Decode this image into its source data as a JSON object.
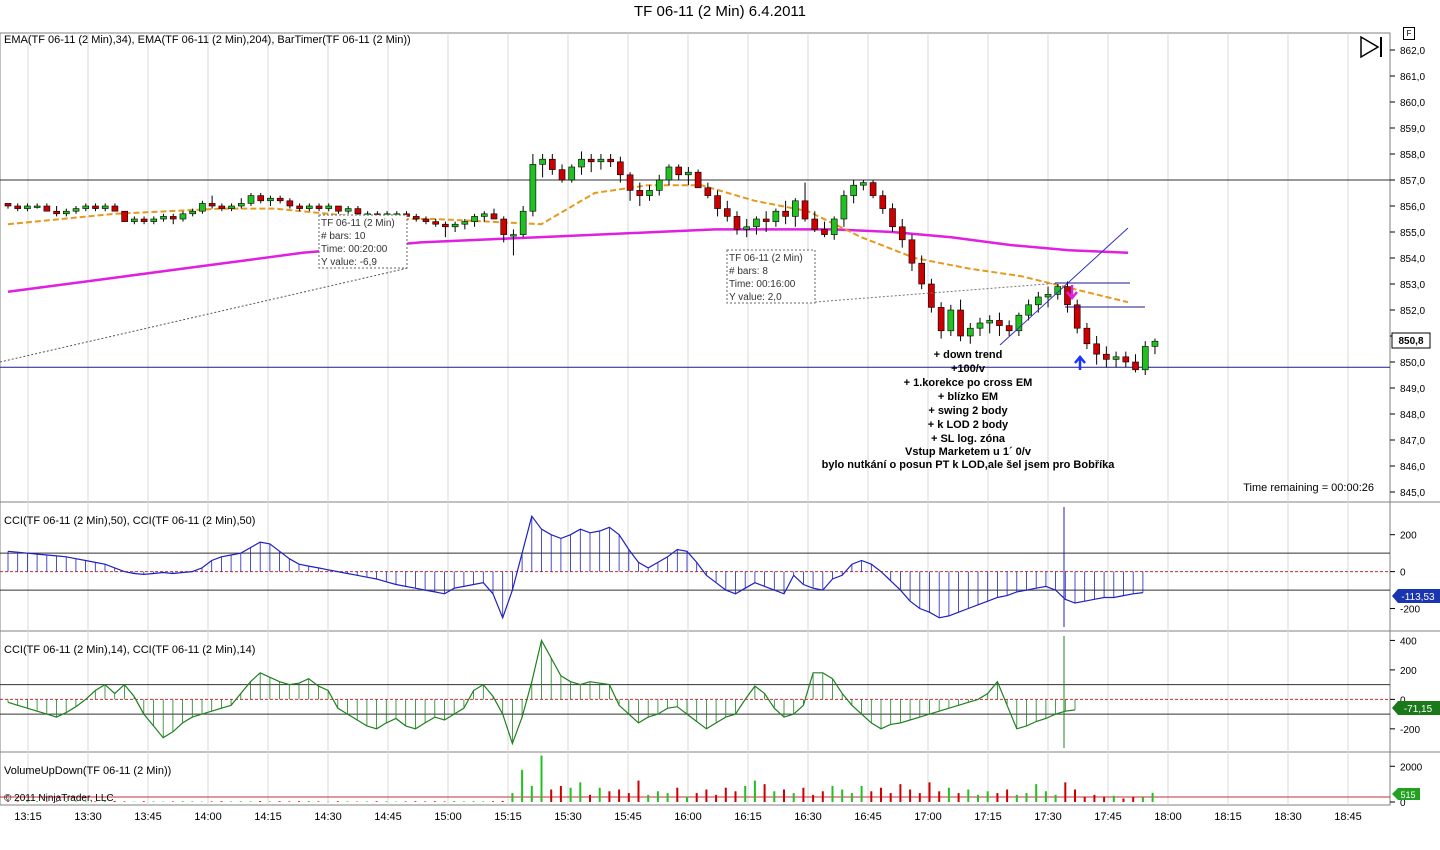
{
  "window": {
    "title": "TF 06-11 (2 Min)  6.4.2011",
    "badge": "F"
  },
  "panels": {
    "price": {
      "indicator_label": "EMA(TF 06-11 (2 Min),34), EMA(TF 06-11 (2 Min),204), BarTimer(TF 06-11 (2 Min))",
      "time_remaining": "Time remaining = 00:00:26",
      "last_price_label": "850,8",
      "y_ticks": [
        "862,0",
        "861,0",
        "860,0",
        "859,0",
        "858,0",
        "857,0",
        "856,0",
        "855,0",
        "854,0",
        "853,0",
        "852,0",
        "851,0",
        "850,0",
        "849,0",
        "848,0",
        "847,0",
        "846,0",
        "845,0"
      ],
      "tooltip1": {
        "lines": [
          "TF 06-11 (2 Min)",
          "# bars:   10",
          "Time:    00:20:00",
          "Y value: -6,9"
        ]
      },
      "tooltip2": {
        "lines": [
          "TF 06-11 (2 Min)",
          "# bars:   8",
          "Time:    00:16:00",
          "Y value: 2,0"
        ]
      },
      "notes": [
        "+ down trend",
        "+100/v",
        "+ 1.korekce po cross EM",
        "+ blízko EM",
        "+ swing 2 body",
        "+ k LOD 2 body",
        "+ SL log. zóna",
        "Vstup Marketem u 1´ 0/v",
        "bylo nutkání o posun PT k LOD,ale šel jsem pro Bobříka"
      ]
    },
    "cci50": {
      "label": "CCI(TF 06-11 (2 Min),50), CCI(TF 06-11 (2 Min),50)",
      "y_ticks": [
        "200",
        "0",
        "-200"
      ],
      "last_label": "-113,53"
    },
    "cci14": {
      "label": "CCI(TF 06-11 (2 Min),14), CCI(TF 06-11 (2 Min),14)",
      "y_ticks": [
        "400",
        "200",
        "0",
        "-200"
      ],
      "last_label": "-71,15"
    },
    "volume": {
      "label": "VolumeUpDown(TF 06-11 (2 Min))",
      "copyright": "© 2011 NinjaTrader, LLC",
      "y_ticks": [
        "2000",
        "0"
      ],
      "last_label": "515"
    }
  },
  "x_axis": {
    "ticks": [
      "13:15",
      "13:30",
      "13:45",
      "14:00",
      "14:15",
      "14:30",
      "14:45",
      "15:00",
      "15:15",
      "15:30",
      "15:45",
      "16:00",
      "16:15",
      "16:30",
      "16:45",
      "17:00",
      "17:15",
      "17:30",
      "17:45",
      "18:00",
      "18:15",
      "18:30",
      "18:45"
    ]
  },
  "colors": {
    "up": "#22c022",
    "down": "#cc0000",
    "ema34": "#e69a1c",
    "ema204": "#e020e0",
    "cci50": "#2020c0",
    "cci14": "#208020",
    "axis_label_bg": "#00008b"
  },
  "chart_data": [
    {
      "type": "candlestick",
      "title": "TF 06-11 (2 Min)  6.4.2011",
      "xlabel": "",
      "ylabel": "",
      "x_start": "13:15",
      "interval_minutes": 2,
      "ylim": [
        845,
        862.5
      ],
      "candles": [
        [
          856.1,
          856.1,
          855.9,
          856.0
        ],
        [
          856.0,
          856.1,
          855.8,
          855.9
        ],
        [
          855.9,
          856.1,
          855.8,
          856.0
        ],
        [
          856.0,
          856.1,
          855.9,
          856.0
        ],
        [
          856.0,
          856.1,
          855.8,
          855.8
        ],
        [
          855.8,
          856.0,
          855.6,
          855.7
        ],
        [
          855.7,
          855.9,
          855.6,
          855.8
        ],
        [
          855.8,
          856.0,
          855.7,
          855.9
        ],
        [
          855.9,
          856.1,
          855.8,
          856.0
        ],
        [
          856.0,
          856.1,
          855.8,
          855.9
        ],
        [
          855.9,
          856.1,
          855.8,
          856.0
        ],
        [
          856.0,
          856.1,
          855.8,
          855.8
        ],
        [
          855.8,
          855.8,
          855.4,
          855.4
        ],
        [
          855.4,
          855.6,
          855.3,
          855.5
        ],
        [
          855.5,
          855.6,
          855.3,
          855.4
        ],
        [
          855.4,
          855.6,
          855.3,
          855.5
        ],
        [
          855.5,
          855.7,
          855.4,
          855.6
        ],
        [
          855.6,
          855.7,
          855.3,
          855.5
        ],
        [
          855.5,
          855.8,
          855.4,
          855.7
        ],
        [
          855.7,
          855.9,
          855.6,
          855.8
        ],
        [
          855.8,
          856.2,
          855.7,
          856.1
        ],
        [
          856.1,
          856.4,
          855.9,
          856.0
        ],
        [
          856.0,
          856.1,
          855.8,
          855.9
        ],
        [
          855.9,
          856.1,
          855.8,
          856.0
        ],
        [
          856.0,
          856.3,
          855.9,
          856.1
        ],
        [
          856.1,
          856.5,
          856.0,
          856.4
        ],
        [
          856.4,
          856.5,
          856.1,
          856.2
        ],
        [
          856.2,
          856.4,
          856.0,
          856.3
        ],
        [
          856.3,
          856.4,
          856.1,
          856.2
        ],
        [
          856.2,
          856.3,
          855.9,
          856.0
        ],
        [
          856.0,
          856.1,
          855.8,
          855.9
        ],
        [
          855.9,
          856.1,
          855.8,
          856.0
        ],
        [
          856.0,
          856.1,
          855.8,
          855.9
        ],
        [
          855.9,
          856.1,
          855.8,
          856.0
        ],
        [
          856.0,
          856.0,
          855.7,
          855.8
        ],
        [
          855.8,
          856.0,
          855.7,
          855.9
        ],
        [
          855.9,
          856.0,
          855.6,
          855.7
        ],
        [
          855.7,
          855.8,
          855.6,
          855.7
        ],
        [
          855.7,
          855.8,
          855.5,
          855.6
        ],
        [
          855.6,
          855.8,
          855.5,
          855.7
        ],
        [
          855.7,
          855.8,
          855.6,
          855.7
        ],
        [
          855.7,
          855.8,
          855.5,
          855.6
        ],
        [
          855.6,
          855.7,
          855.4,
          855.5
        ],
        [
          855.5,
          855.6,
          855.3,
          855.4
        ],
        [
          855.4,
          855.5,
          855.2,
          855.3
        ],
        [
          855.3,
          855.4,
          854.8,
          855.2
        ],
        [
          855.2,
          855.4,
          855.0,
          855.3
        ],
        [
          855.3,
          855.5,
          855.1,
          855.4
        ],
        [
          855.4,
          855.7,
          855.2,
          855.6
        ],
        [
          855.6,
          855.8,
          855.4,
          855.7
        ],
        [
          855.7,
          855.9,
          855.5,
          855.5
        ],
        [
          855.5,
          855.6,
          854.6,
          854.9
        ],
        [
          854.9,
          855.1,
          854.1,
          854.9
        ],
        [
          854.9,
          856.0,
          854.8,
          855.8
        ],
        [
          855.8,
          858.0,
          855.6,
          857.6
        ],
        [
          857.6,
          858.0,
          857.1,
          857.8
        ],
        [
          857.8,
          858.0,
          857.2,
          857.4
        ],
        [
          857.4,
          857.6,
          856.9,
          857.0
        ],
        [
          857.0,
          857.6,
          856.9,
          857.5
        ],
        [
          857.5,
          858.1,
          857.2,
          857.8
        ],
        [
          857.8,
          858.0,
          857.3,
          857.7
        ],
        [
          857.7,
          858.0,
          857.4,
          857.8
        ],
        [
          857.8,
          858.0,
          857.5,
          857.7
        ],
        [
          857.7,
          857.9,
          856.9,
          857.2
        ],
        [
          857.2,
          857.3,
          856.2,
          856.6
        ],
        [
          856.6,
          856.9,
          856.0,
          856.4
        ],
        [
          856.4,
          856.8,
          856.2,
          856.6
        ],
        [
          856.6,
          857.2,
          856.4,
          857.0
        ],
        [
          857.0,
          857.6,
          856.8,
          857.5
        ],
        [
          857.5,
          857.6,
          857.0,
          857.2
        ],
        [
          857.2,
          857.5,
          856.8,
          857.3
        ],
        [
          857.3,
          857.4,
          856.8,
          856.7
        ],
        [
          856.7,
          856.9,
          856.3,
          856.4
        ],
        [
          856.4,
          856.6,
          855.6,
          855.9
        ],
        [
          855.9,
          856.2,
          855.4,
          855.6
        ],
        [
          855.6,
          855.8,
          854.9,
          855.1
        ],
        [
          855.1,
          855.5,
          854.8,
          855.2
        ],
        [
          855.2,
          855.6,
          854.9,
          855.5
        ],
        [
          855.5,
          855.8,
          855.0,
          855.4
        ],
        [
          855.4,
          855.9,
          855.2,
          855.8
        ],
        [
          855.8,
          856.2,
          855.3,
          855.6
        ],
        [
          855.6,
          856.3,
          855.2,
          856.2
        ],
        [
          856.2,
          856.9,
          855.4,
          855.5
        ],
        [
          855.5,
          855.8,
          855.0,
          855.1
        ],
        [
          855.1,
          855.4,
          854.8,
          854.9
        ],
        [
          854.9,
          855.6,
          854.7,
          855.5
        ],
        [
          855.5,
          856.6,
          855.2,
          856.4
        ],
        [
          856.4,
          857.0,
          856.1,
          856.8
        ],
        [
          856.8,
          857.0,
          856.6,
          856.9
        ],
        [
          856.9,
          857.0,
          856.3,
          856.4
        ],
        [
          856.4,
          856.6,
          855.7,
          855.9
        ],
        [
          855.9,
          856.1,
          855.0,
          855.2
        ],
        [
          855.2,
          855.5,
          854.4,
          854.7
        ],
        [
          854.7,
          854.9,
          853.5,
          853.8
        ],
        [
          853.8,
          854.1,
          852.8,
          853.0
        ],
        [
          853.0,
          853.2,
          851.9,
          852.1
        ],
        [
          852.1,
          852.3,
          850.9,
          851.2
        ],
        [
          851.2,
          852.2,
          851.0,
          852.0
        ],
        [
          852.0,
          852.4,
          850.8,
          851.0
        ],
        [
          851.0,
          851.5,
          850.7,
          851.3
        ],
        [
          851.3,
          851.7,
          851.0,
          851.5
        ],
        [
          851.5,
          851.8,
          851.1,
          851.6
        ],
        [
          851.6,
          851.9,
          851.0,
          851.4
        ],
        [
          851.4,
          851.6,
          851.0,
          851.2
        ],
        [
          851.2,
          851.9,
          851.0,
          851.8
        ],
        [
          851.8,
          852.4,
          851.6,
          852.2
        ],
        [
          852.2,
          852.7,
          851.9,
          852.5
        ],
        [
          852.5,
          852.9,
          852.1,
          852.6
        ],
        [
          852.6,
          853.0,
          852.4,
          852.9
        ],
        [
          852.9,
          853.1,
          851.9,
          852.2
        ],
        [
          852.2,
          852.4,
          851.1,
          851.3
        ],
        [
          851.3,
          851.5,
          850.5,
          850.7
        ],
        [
          850.7,
          851.0,
          849.9,
          850.3
        ],
        [
          850.3,
          850.6,
          849.8,
          850.1
        ],
        [
          850.1,
          850.4,
          849.8,
          850.2
        ],
        [
          850.2,
          850.4,
          849.8,
          850.0
        ],
        [
          850.0,
          850.3,
          849.6,
          849.7
        ],
        [
          849.7,
          850.8,
          849.5,
          850.6
        ],
        [
          850.6,
          850.9,
          850.3,
          850.8
        ]
      ],
      "series": [
        {
          "name": "EMA(TF 06-11 (2 Min),34)",
          "values": [
            855.3,
            855.5,
            855.7,
            855.8,
            855.9,
            855.9,
            855.7,
            855.5,
            855.5,
            855.4,
            855.3,
            856.5,
            856.8,
            856.8,
            856.2,
            855.8,
            854.8,
            854.0,
            853.6,
            853.3,
            852.8,
            852.3
          ]
        },
        {
          "name": "EMA(TF 06-11 (2 Min),204)",
          "values": [
            852.7,
            853.0,
            853.3,
            853.6,
            853.9,
            854.2,
            854.4,
            854.6,
            854.7,
            854.8,
            854.9,
            855.0,
            855.1,
            855.1,
            855.1,
            855.0,
            854.8,
            854.5,
            854.3,
            854.2
          ]
        }
      ],
      "reference_lines": [
        857.0,
        849.8
      ],
      "annotations": [
        "TF 06-11 (2 Min) # bars: 10 Time: 00:20:00 Y value: -6,9",
        "TF 06-11 (2 Min) # bars: 8 Time: 00:16:00 Y value: 2,0"
      ]
    },
    {
      "type": "bar",
      "title": "CCI(TF 06-11 (2 Min),50)",
      "ylim": [
        -300,
        350
      ],
      "reference_lines": [
        100,
        0,
        -100
      ],
      "values": [
        110,
        105,
        100,
        95,
        90,
        85,
        80,
        70,
        60,
        50,
        40,
        20,
        0,
        -10,
        -15,
        -10,
        -5,
        -10,
        -5,
        0,
        20,
        60,
        80,
        90,
        100,
        130,
        160,
        150,
        110,
        70,
        40,
        30,
        20,
        10,
        0,
        -10,
        -20,
        -30,
        -40,
        -55,
        -70,
        -80,
        -90,
        -100,
        -110,
        -120,
        -90,
        -80,
        -70,
        -60,
        -120,
        -250,
        -100,
        100,
        300,
        230,
        200,
        180,
        200,
        230,
        210,
        220,
        240,
        200,
        120,
        50,
        20,
        50,
        80,
        120,
        110,
        50,
        -20,
        -60,
        -100,
        -120,
        -90,
        -60,
        -80,
        -100,
        -120,
        -20,
        -70,
        -90,
        -100,
        -40,
        -20,
        40,
        60,
        40,
        0,
        -50,
        -100,
        -160,
        -200,
        -220,
        -250,
        -240,
        -220,
        -200,
        -180,
        -160,
        -140,
        -130,
        -110,
        -100,
        -90,
        -80,
        -100,
        -150,
        -170,
        -160,
        -150,
        -140,
        -140,
        -130,
        -120,
        -113.53
      ]
    },
    {
      "type": "bar",
      "title": "CCI(TF 06-11 (2 Min),14)",
      "ylim": [
        -330,
        430
      ],
      "reference_lines": [
        100,
        0,
        -100
      ],
      "values": [
        -20,
        -40,
        -60,
        -80,
        -100,
        -120,
        -90,
        -50,
        0,
        60,
        100,
        40,
        100,
        20,
        -100,
        -180,
        -260,
        -220,
        -160,
        -120,
        -100,
        -80,
        -60,
        -40,
        40,
        120,
        180,
        150,
        120,
        100,
        110,
        140,
        90,
        60,
        -60,
        -100,
        -140,
        -180,
        -200,
        -160,
        -130,
        -180,
        -200,
        -160,
        -120,
        -140,
        -100,
        -60,
        60,
        100,
        20,
        -100,
        -300,
        -120,
        120,
        400,
        280,
        160,
        120,
        100,
        120,
        110,
        100,
        -40,
        -100,
        -160,
        -120,
        -100,
        -60,
        -50,
        -100,
        -150,
        -200,
        -160,
        -120,
        -100,
        0,
        90,
        40,
        -60,
        -120,
        -100,
        -40,
        180,
        180,
        140,
        40,
        -40,
        -100,
        -160,
        -200,
        -170,
        -160,
        -140,
        -120,
        -100,
        -80,
        -60,
        -40,
        -20,
        0,
        40,
        120,
        -40,
        -200,
        -180,
        -150,
        -130,
        -100,
        -80,
        -71.15
      ]
    },
    {
      "type": "bar",
      "title": "VolumeUpDown(TF 06-11 (2 Min))",
      "ylim": [
        0,
        2800
      ],
      "values": [
        40,
        30,
        50,
        40,
        30,
        40,
        50,
        30,
        40,
        30,
        40,
        50,
        30,
        20,
        40,
        30,
        20,
        30,
        40,
        30,
        20,
        30,
        40,
        30,
        40,
        30,
        50,
        30,
        40,
        30,
        40,
        50,
        30,
        20,
        40,
        30,
        20,
        30,
        40,
        30,
        20,
        30,
        40,
        30,
        40,
        30,
        50,
        30,
        40,
        30,
        40,
        60,
        500,
        1800,
        900,
        2600,
        700,
        900,
        800,
        1100,
        400,
        800,
        600,
        700,
        500,
        1200,
        400,
        600,
        500,
        800,
        300,
        500,
        700,
        400,
        800,
        600,
        900,
        1200,
        1000,
        600,
        700,
        500,
        800,
        400,
        600,
        900,
        700,
        500,
        900,
        600,
        800,
        500,
        1000,
        700,
        500,
        1100,
        600,
        800,
        500,
        700,
        400,
        600,
        500,
        700,
        400,
        500,
        1000,
        600,
        400,
        1100,
        700,
        300,
        400,
        300,
        350,
        200,
        300,
        250,
        515
      ]
    }
  ]
}
